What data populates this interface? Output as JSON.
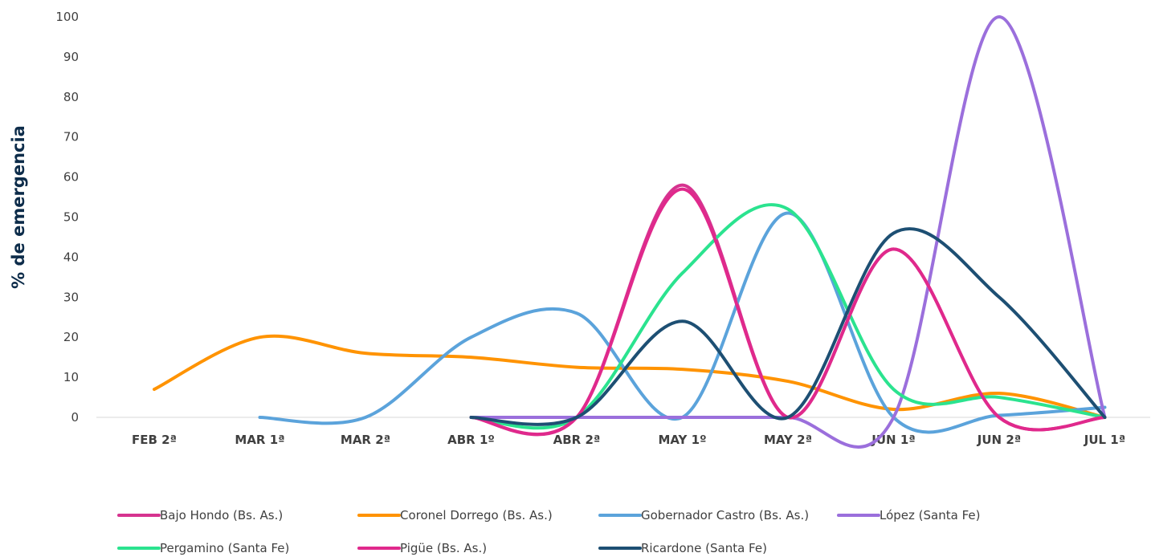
{
  "chart_data": {
    "type": "line",
    "ylabel": "% de emergencia",
    "xlabel": "",
    "ylim": [
      0,
      100
    ],
    "yticks": [
      0,
      10,
      20,
      30,
      40,
      50,
      60,
      70,
      80,
      90,
      100
    ],
    "categories": [
      "FEB 2ª",
      "MAR 1ª",
      "MAR 2ª",
      "ABR 1º",
      "ABR  2ª",
      "MAY 1º",
      "MAY 2ª",
      "JUN 1ª",
      "JUN 2ª",
      "JUL 1ª"
    ],
    "smooth": true,
    "grid": false,
    "legend_position": "bottom",
    "series": [
      {
        "name": "Bajo Hondo (Bs. As.)",
        "color": "#d6338f",
        "values": [
          null,
          null,
          null,
          0,
          0,
          58,
          0,
          42,
          0,
          0
        ]
      },
      {
        "name": "Coronel Dorrego (Bs. As.)",
        "color": "#ff9300",
        "values": [
          7,
          20,
          16,
          15,
          12.5,
          12,
          9,
          2,
          6,
          0
        ]
      },
      {
        "name": "Gobernador Castro (Bs. As.)",
        "color": "#5ba3db",
        "values": [
          null,
          0,
          0,
          20,
          26,
          0,
          51,
          0,
          0.5,
          2.5
        ]
      },
      {
        "name": "López (Santa Fe)",
        "color": "#9b6fdc",
        "values": [
          null,
          null,
          null,
          0,
          0,
          0,
          0,
          0,
          100,
          0
        ]
      },
      {
        "name": "Pergamino (Santa Fe)",
        "color": "#2be38f",
        "values": [
          null,
          null,
          null,
          0,
          0,
          36,
          52,
          7,
          5,
          0
        ]
      },
      {
        "name": "Pigüe (Bs. As.)",
        "color": "#e0298c",
        "values": [
          null,
          null,
          null,
          0,
          0,
          57,
          0,
          42,
          0,
          0
        ]
      },
      {
        "name": "Ricardone (Santa Fe)",
        "color": "#1d4f73",
        "values": [
          null,
          null,
          null,
          0,
          0,
          24,
          0,
          46,
          30,
          0
        ]
      }
    ]
  }
}
